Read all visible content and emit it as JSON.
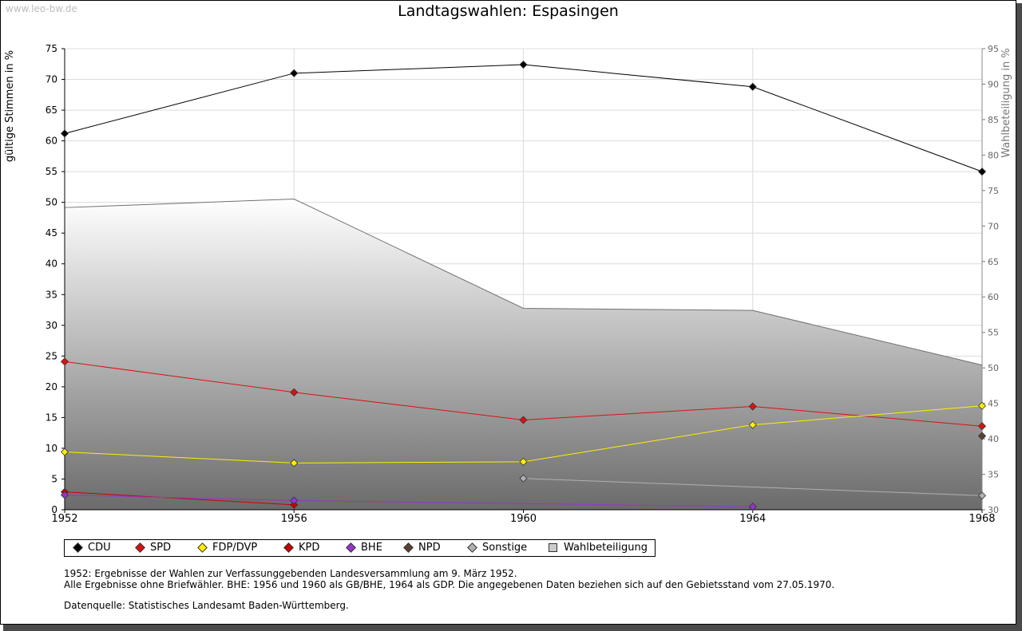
{
  "watermark": "www.leo-bw.de",
  "chart_data": {
    "type": "line",
    "title": "Landtagswahlen: Espasingen",
    "ylabel": "gültige Stimmen in %",
    "y2label": "Wahlbeteiligung in %",
    "categories": [
      "1952",
      "1956",
      "1960",
      "1964",
      "1968"
    ],
    "ylim": [
      0,
      75
    ],
    "y2lim": [
      30,
      95
    ],
    "yticks": [
      "0",
      "5",
      "10",
      "15",
      "20",
      "25",
      "30",
      "35",
      "40",
      "45",
      "50",
      "55",
      "60",
      "65",
      "70",
      "75"
    ],
    "y2ticks": [
      "30",
      "35",
      "40",
      "45",
      "50",
      "55",
      "60",
      "65",
      "70",
      "75",
      "80",
      "85",
      "90",
      "95"
    ],
    "grid": true,
    "series": [
      {
        "name": "CDU",
        "color": "#000000",
        "values": [
          61.2,
          71.0,
          72.4,
          68.8,
          55.0
        ]
      },
      {
        "name": "SPD",
        "color": "#dd1111",
        "values": [
          24.1,
          19.1,
          14.6,
          16.8,
          13.6
        ]
      },
      {
        "name": "FDP/DVP",
        "color": "#ffee00",
        "values": [
          9.4,
          7.6,
          7.8,
          13.8,
          16.9
        ]
      },
      {
        "name": "KPD",
        "color": "#cc0000",
        "values": [
          2.9,
          0.8,
          null,
          null,
          null
        ]
      },
      {
        "name": "BHE",
        "color": "#9933cc",
        "values": [
          2.4,
          1.5,
          null,
          0.5,
          null
        ]
      },
      {
        "name": "NPD",
        "color": "#5c4030",
        "values": [
          null,
          null,
          null,
          null,
          12.0
        ]
      },
      {
        "name": "Sonstige",
        "color": "#b0b0b0",
        "values": [
          null,
          null,
          5.1,
          null,
          2.3
        ]
      }
    ],
    "turnout": {
      "name": "Wahlbeteiligung",
      "axis": "right",
      "values": [
        72.6,
        73.8,
        58.4,
        58.1,
        50.4
      ]
    }
  },
  "notes": {
    "line1": "1952: Ergebnisse der Wahlen zur Verfassunggebenden Landesversammlung am 9. März 1952.",
    "line2": "Alle Ergebnisse ohne Briefwähler. BHE: 1956 und 1960 als GB/BHE, 1964 als GDP. Die angegebenen Daten beziehen sich auf den Gebietsstand vom 27.05.1970.",
    "source": "Datenquelle: Statistisches Landesamt Baden-Württemberg."
  }
}
